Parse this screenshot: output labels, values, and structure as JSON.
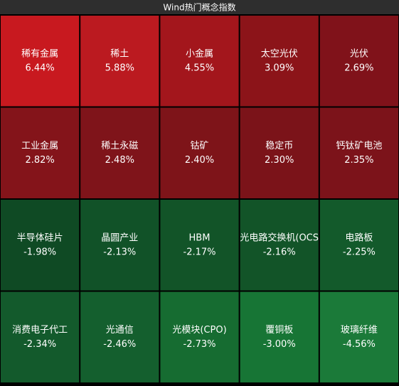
{
  "chart_data": {
    "type": "heatmap",
    "title": "Wind热门概念指数",
    "categories": [
      "稀有金属",
      "稀土",
      "小金属",
      "太空光伏",
      "光伏",
      "工业金属",
      "稀土永磁",
      "钴矿",
      "稳定币",
      "钙钛矿电池",
      "半导体硅片",
      "晶圆产业",
      "HBM",
      "光电路交换机(OCS",
      "电路板",
      "消费电子代工",
      "光通信",
      "光模块(CPO)",
      "覆铜板",
      "玻璃纤维"
    ],
    "values": [
      6.44,
      5.88,
      4.55,
      3.09,
      2.69,
      2.82,
      2.48,
      2.4,
      2.3,
      2.35,
      -1.98,
      -2.13,
      -2.17,
      -2.16,
      -2.25,
      -2.34,
      -2.46,
      -2.73,
      -3.0,
      -4.56
    ],
    "value_labels": [
      "6.44%",
      "5.88%",
      "4.55%",
      "3.09%",
      "2.69%",
      "2.82%",
      "2.48%",
      "2.40%",
      "2.30%",
      "2.35%",
      "-1.98%",
      "-2.13%",
      "-2.17%",
      "-2.16%",
      "-2.25%",
      "-2.34%",
      "-2.46%",
      "-2.73%",
      "-3.00%",
      "-4.56%"
    ],
    "colors": [
      "#c8191f",
      "#bb1a20",
      "#a3161c",
      "#8c1419",
      "#80121a",
      "#84141a",
      "#7f141a",
      "#7e1419",
      "#7b1319",
      "#7c131a",
      "#0f4a24",
      "#115228",
      "#125428",
      "#125428",
      "#135a2b",
      "#135a2c",
      "#145f2e",
      "#166c31",
      "#177535",
      "#1b7a39"
    ]
  }
}
